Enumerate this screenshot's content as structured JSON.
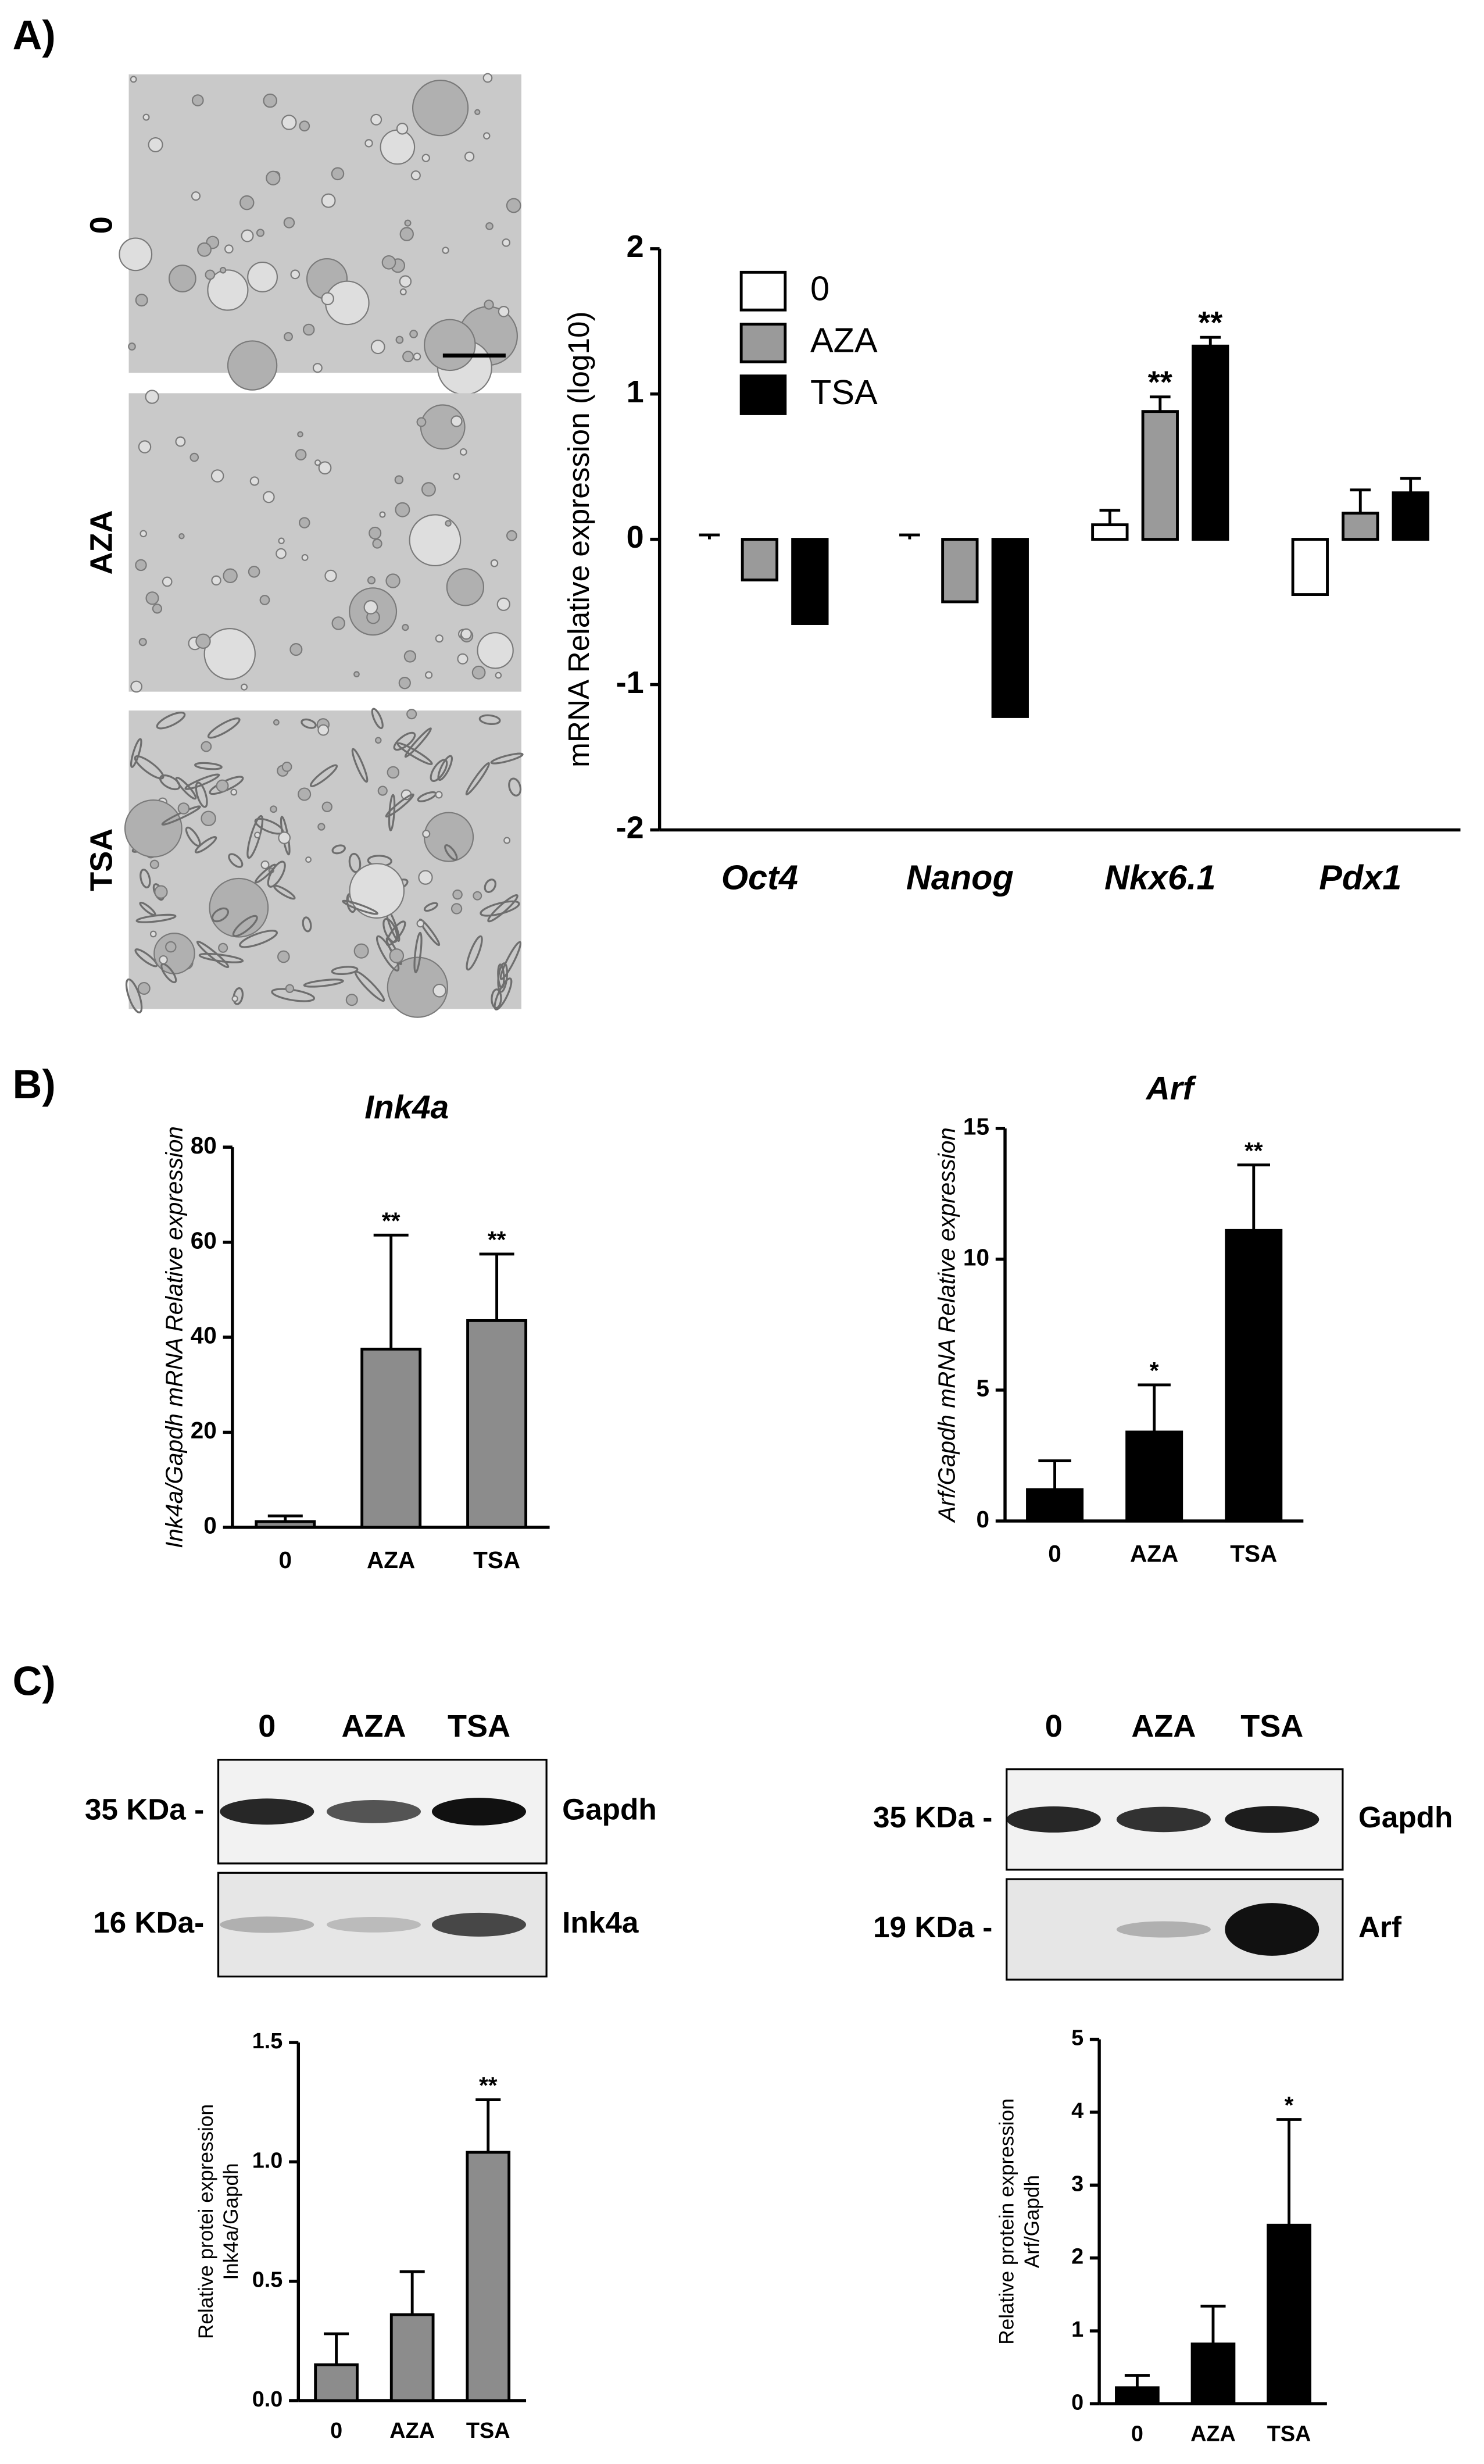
{
  "panel_labels": [
    "A)",
    "B)",
    "C)"
  ],
  "micrographs": {
    "labels": [
      "0",
      "AZA",
      "TSA"
    ]
  },
  "blots": [
    {
      "lanes": [
        "0",
        "AZA",
        "TSA"
      ],
      "rows": [
        {
          "marker": "35 KDa -",
          "protein": "Gapdh"
        },
        {
          "marker": "16 KDa-",
          "protein": "Ink4a"
        }
      ]
    },
    {
      "lanes": [
        "0",
        "AZA",
        "TSA"
      ],
      "rows": [
        {
          "marker": "35 KDa -",
          "protein": "Gapdh"
        },
        {
          "marker": "19 KDa -",
          "protein": "Arf"
        }
      ]
    }
  ],
  "chart_data": [
    {
      "type": "bar",
      "ylabel": [
        "mRNA Relative expression (log10)"
      ],
      "categories": [
        "Oct4",
        "Nanog",
        "Nkx6.1",
        "Pdx1"
      ],
      "series": [
        {
          "name": "0",
          "color": "#ffffff",
          "values": [
            0.0,
            0.0,
            0.1,
            -0.38
          ],
          "errors": [
            0.03,
            0.03,
            0.1,
            0.16
          ],
          "significance": [
            null,
            null,
            null,
            null
          ]
        },
        {
          "name": "AZA",
          "color": "#9a9a9a",
          "values": [
            -0.28,
            -0.43,
            0.88,
            0.18
          ],
          "errors": [
            0.14,
            0.03,
            0.1,
            0.16
          ],
          "significance": [
            null,
            null,
            "**",
            null
          ]
        },
        {
          "name": "TSA",
          "color": "#000000",
          "values": [
            -0.58,
            -1.22,
            1.33,
            0.32
          ],
          "errors": [
            0.08,
            0.08,
            0.06,
            0.1
          ],
          "significance": [
            null,
            null,
            "**",
            null
          ]
        }
      ],
      "ylim": [
        -2,
        2
      ],
      "yticks": [
        -2,
        -1,
        0,
        1,
        2
      ]
    },
    {
      "type": "bar",
      "title": "Ink4a",
      "ylabel": [
        "Ink4a/Gapdh mRNA Relative expression"
      ],
      "categories": [
        "0",
        "AZA",
        "TSA"
      ],
      "color": "#8c8c8c",
      "values": [
        1.2,
        37.5,
        43.5
      ],
      "errors": [
        1.2,
        24,
        14
      ],
      "significance": [
        null,
        "**",
        "**"
      ],
      "ylim": [
        0,
        80
      ],
      "yticks": [
        0,
        20,
        40,
        60,
        80
      ]
    },
    {
      "type": "bar",
      "title": "Arf",
      "ylabel": [
        "Arf/Gapdh mRNA Relative expression"
      ],
      "categories": [
        "0",
        "AZA",
        "TSA"
      ],
      "color": "#000000",
      "values": [
        1.2,
        3.4,
        11.1
      ],
      "errors": [
        1.1,
        1.8,
        2.5
      ],
      "significance": [
        null,
        "*",
        "**"
      ],
      "ylim": [
        0,
        15
      ],
      "yticks": [
        0,
        5,
        10,
        15
      ]
    },
    {
      "type": "bar",
      "ylabel": [
        "Relative protei expression",
        "Ink4a/Gapdh"
      ],
      "categories": [
        "0",
        "AZA",
        "TSA"
      ],
      "color": "#8c8c8c",
      "values": [
        0.15,
        0.36,
        1.04
      ],
      "errors": [
        0.13,
        0.18,
        0.22
      ],
      "significance": [
        null,
        null,
        "**"
      ],
      "ylim": [
        0,
        1.5
      ],
      "yticks": [
        {
          "value": 0,
          "label": "0.0"
        },
        {
          "value": 0.5,
          "label": "0.5"
        },
        {
          "value": 1,
          "label": "1.0"
        },
        {
          "value": 1.5,
          "label": "1.5"
        }
      ]
    },
    {
      "type": "bar",
      "ylabel": [
        "Relative protein expression",
        "Arf/Gapdh"
      ],
      "categories": [
        "0",
        "AZA",
        "TSA"
      ],
      "color": "#000000",
      "values": [
        0.22,
        0.82,
        2.45
      ],
      "errors": [
        0.17,
        0.52,
        1.45
      ],
      "significance": [
        null,
        null,
        "*"
      ],
      "ylim": [
        0,
        5
      ],
      "yticks": [
        0,
        1,
        2,
        3,
        4,
        5
      ]
    }
  ]
}
